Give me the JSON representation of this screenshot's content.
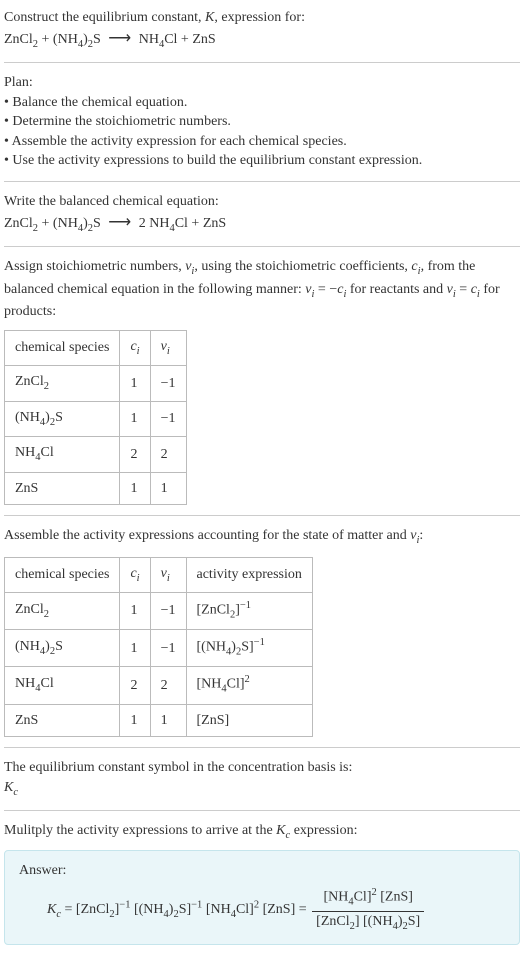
{
  "header": {
    "line1": "Construct the equilibrium constant, ",
    "k_symbol": "K",
    "line1_end": ", expression for:",
    "eq_left": "ZnCl",
    "eq_sub1": "2",
    "eq_plus1": " + (NH",
    "eq_sub2": "4",
    "eq_close1": ")",
    "eq_sub3": "2",
    "eq_s": "S",
    "eq_arrow": "⟶",
    "eq_right1": "NH",
    "eq_sub4": "4",
    "eq_cl": "Cl + ZnS"
  },
  "plan": {
    "title": "Plan:",
    "items": [
      "Balance the chemical equation.",
      "Determine the stoichiometric numbers.",
      "Assemble the activity expression for each chemical species.",
      "Use the activity expressions to build the equilibrium constant expression."
    ]
  },
  "balanced": {
    "title": "Write the balanced chemical equation:",
    "lhs_a": "ZnCl",
    "lhs_a_sub": "2",
    "plus1": " + (NH",
    "lhs_b_sub1": "4",
    "close1": ")",
    "lhs_b_sub2": "2",
    "lhs_s": "S",
    "arrow": "⟶",
    "rhs_coef": "2 NH",
    "rhs_sub1": "4",
    "rhs_rest": "Cl + ZnS"
  },
  "assign": {
    "text_a": "Assign stoichiometric numbers, ",
    "nu": "ν",
    "sub_i": "i",
    "text_b": ", using the stoichiometric coefficients, ",
    "c": "c",
    "text_c": ", from the balanced chemical equation in the following manner: ",
    "eq1_lhs": "ν",
    "eq1_eq": " = −",
    "eq1_rhs": "c",
    "text_d": " for reactants and ",
    "eq2": " = ",
    "text_e": " for products:"
  },
  "table1": {
    "headers": {
      "h1": "chemical species",
      "h2": "c",
      "h2_sub": "i",
      "h3": "ν",
      "h3_sub": "i"
    },
    "rows": [
      {
        "sp_a": "ZnCl",
        "sp_sub": "2",
        "sp_b": "",
        "c": "1",
        "nu": "−1"
      },
      {
        "sp_a": "(NH",
        "sp_sub": "4",
        "sp_mid": ")",
        "sp_sub2": "2",
        "sp_b": "S",
        "c": "1",
        "nu": "−1"
      },
      {
        "sp_a": "NH",
        "sp_sub": "4",
        "sp_b": "Cl",
        "c": "2",
        "nu": "2"
      },
      {
        "sp_a": "ZnS",
        "sp_sub": "",
        "sp_b": "",
        "c": "1",
        "nu": "1"
      }
    ]
  },
  "assemble": {
    "text_a": "Assemble the activity expressions accounting for the state of matter and ",
    "nu": "ν",
    "sub_i": "i",
    "colon": ":"
  },
  "table2": {
    "headers": {
      "h1": "chemical species",
      "h2": "c",
      "h2_sub": "i",
      "h3": "ν",
      "h3_sub": "i",
      "h4": "activity expression"
    },
    "rows": [
      {
        "sp_a": "ZnCl",
        "sp_sub": "2",
        "sp_mid": "",
        "sp_sub2": "",
        "sp_b": "",
        "c": "1",
        "nu": "−1",
        "ae_open": "[ZnCl",
        "ae_sub": "2",
        "ae_mid": "",
        "ae_sub2": "",
        "ae_close": "]",
        "ae_sup": "−1"
      },
      {
        "sp_a": "(NH",
        "sp_sub": "4",
        "sp_mid": ")",
        "sp_sub2": "2",
        "sp_b": "S",
        "c": "1",
        "nu": "−1",
        "ae_open": "[(NH",
        "ae_sub": "4",
        "ae_mid": ")",
        "ae_sub2": "2",
        "ae_close": "S]",
        "ae_sup": "−1"
      },
      {
        "sp_a": "NH",
        "sp_sub": "4",
        "sp_mid": "",
        "sp_sub2": "",
        "sp_b": "Cl",
        "c": "2",
        "nu": "2",
        "ae_open": "[NH",
        "ae_sub": "4",
        "ae_mid": "",
        "ae_sub2": "",
        "ae_close": "Cl]",
        "ae_sup": "2"
      },
      {
        "sp_a": "ZnS",
        "sp_sub": "",
        "sp_mid": "",
        "sp_sub2": "",
        "sp_b": "",
        "c": "1",
        "nu": "1",
        "ae_open": "[ZnS]",
        "ae_sub": "",
        "ae_mid": "",
        "ae_sub2": "",
        "ae_close": "",
        "ae_sup": ""
      }
    ]
  },
  "kc_text": {
    "line1": "The equilibrium constant symbol in the concentration basis is:",
    "symbol": "K",
    "symbol_sub": "c"
  },
  "multiply": {
    "text_a": "Mulitply the activity expressions to arrive at the ",
    "k": "K",
    "k_sub": "c",
    "text_b": " expression:"
  },
  "answer": {
    "label": "Answer:",
    "k": "K",
    "k_sub": "c",
    "eq": " = ",
    "t1": "[ZnCl",
    "t1_sub": "2",
    "t1_close": "]",
    "t1_sup": "−1",
    "t2": " [(NH",
    "t2_sub": "4",
    "t2_mid": ")",
    "t2_sub2": "2",
    "t2_close": "S]",
    "t2_sup": "−1",
    "t3": " [NH",
    "t3_sub": "4",
    "t3_close": "Cl]",
    "t3_sup": "2",
    "t4": " [ZnS] = ",
    "num_a": "[NH",
    "num_sub": "4",
    "num_b": "Cl]",
    "num_sup": "2",
    "num_c": " [ZnS]",
    "den_a": "[ZnCl",
    "den_sub": "2",
    "den_b": "] [(NH",
    "den_sub2": "4",
    "den_c": ")",
    "den_sub3": "2",
    "den_d": "S]"
  }
}
